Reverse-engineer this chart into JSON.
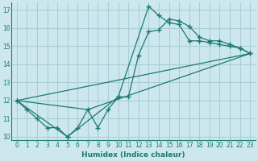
{
  "xlabel": "Humidex (Indice chaleur)",
  "background_color": "#cce8ee",
  "grid_color": "#aacdd6",
  "line_color": "#1a7a6e",
  "xlim": [
    -0.5,
    23.5
  ],
  "ylim": [
    9.8,
    17.4
  ],
  "xticks": [
    0,
    1,
    2,
    3,
    4,
    5,
    6,
    7,
    8,
    9,
    10,
    11,
    12,
    13,
    14,
    15,
    16,
    17,
    18,
    19,
    20,
    21,
    22,
    23
  ],
  "yticks": [
    10,
    11,
    12,
    13,
    14,
    15,
    16,
    17
  ],
  "line1_x": [
    0,
    1,
    2,
    3,
    4,
    5,
    6,
    7,
    8,
    9,
    10,
    11,
    12,
    13,
    14,
    15,
    16,
    17,
    18,
    19,
    20,
    21,
    22,
    23
  ],
  "line1_y": [
    12,
    11.5,
    11,
    10.5,
    10.5,
    10,
    10.5,
    11.5,
    10.5,
    11.5,
    12.2,
    12.2,
    14.5,
    15.8,
    15.9,
    16.5,
    16.4,
    16.1,
    15.5,
    15.3,
    15.3,
    15.1,
    14.9,
    14.6
  ],
  "line2_x": [
    0,
    5,
    10,
    13,
    14,
    15,
    16,
    17,
    18,
    19,
    20,
    21,
    22,
    23
  ],
  "line2_y": [
    12,
    10,
    12.2,
    17.2,
    16.7,
    16.3,
    16.2,
    15.3,
    15.3,
    15.2,
    15.1,
    15.0,
    14.9,
    14.6
  ],
  "line3_x": [
    0,
    23
  ],
  "line3_y": [
    12,
    14.6
  ],
  "line4_x": [
    0,
    7,
    23
  ],
  "line4_y": [
    12,
    11.5,
    14.6
  ]
}
